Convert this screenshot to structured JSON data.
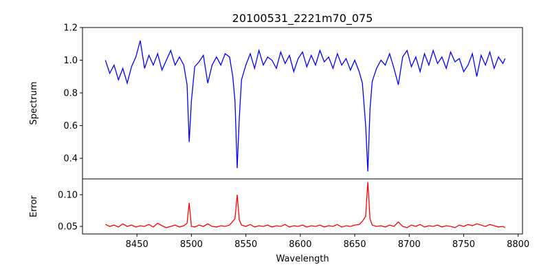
{
  "chart_data": {
    "type": "line",
    "title": "20100531_2221m70_075",
    "xlabel": "Wavelength",
    "xlim": [
      8400,
      8804
    ],
    "xticks": [
      8450,
      8500,
      8550,
      8600,
      8650,
      8700,
      8750,
      8800
    ],
    "x": [
      8421,
      8425,
      8429,
      8433,
      8437,
      8441,
      8445,
      8449,
      8453,
      8457,
      8461,
      8465,
      8469,
      8473,
      8477,
      8481,
      8485,
      8489,
      8493,
      8496,
      8498,
      8500,
      8503,
      8507,
      8511,
      8515,
      8519,
      8523,
      8527,
      8531,
      8535,
      8538,
      8540,
      8542,
      8544,
      8546,
      8550,
      8554,
      8558,
      8562,
      8566,
      8570,
      8574,
      8578,
      8582,
      8586,
      8590,
      8594,
      8598,
      8602,
      8606,
      8610,
      8614,
      8618,
      8622,
      8626,
      8630,
      8634,
      8638,
      8642,
      8646,
      8650,
      8654,
      8657,
      8660,
      8662,
      8664,
      8666,
      8670,
      8674,
      8678,
      8682,
      8686,
      8690,
      8694,
      8698,
      8702,
      8706,
      8710,
      8714,
      8718,
      8722,
      8726,
      8730,
      8734,
      8738,
      8742,
      8746,
      8750,
      8754,
      8758,
      8762,
      8766,
      8770,
      8774,
      8778,
      8782,
      8786,
      8788
    ],
    "panels": [
      {
        "name": "Spectrum",
        "ylabel": "Spectrum",
        "ylim": [
          0.274,
          1.2
        ],
        "yticks": [
          "0.4",
          "0.6",
          "0.8",
          "1.0",
          "1.2"
        ],
        "color": "#0000ff",
        "values": [
          1.0,
          0.92,
          0.97,
          0.88,
          0.95,
          0.86,
          0.96,
          1.02,
          1.12,
          0.95,
          1.03,
          0.97,
          1.04,
          0.94,
          1.0,
          1.06,
          0.97,
          1.02,
          0.97,
          0.85,
          0.5,
          0.75,
          0.96,
          0.99,
          1.03,
          0.86,
          0.97,
          1.02,
          0.97,
          1.04,
          1.02,
          0.9,
          0.75,
          0.34,
          0.65,
          0.88,
          0.97,
          1.04,
          0.95,
          1.06,
          0.97,
          1.02,
          1.0,
          0.95,
          1.05,
          0.98,
          1.03,
          0.93,
          1.01,
          1.05,
          0.96,
          1.03,
          0.97,
          1.06,
          0.99,
          1.02,
          0.95,
          1.04,
          0.97,
          1.01,
          0.94,
          1.0,
          0.93,
          0.86,
          0.6,
          0.32,
          0.7,
          0.87,
          0.95,
          1.0,
          0.97,
          1.04,
          0.95,
          0.85,
          1.02,
          1.06,
          0.96,
          1.02,
          0.93,
          1.04,
          0.97,
          1.06,
          0.98,
          1.02,
          0.95,
          1.05,
          0.99,
          1.01,
          0.93,
          0.97,
          1.04,
          0.9,
          1.03,
          0.97,
          1.05,
          0.95,
          1.02,
          0.98,
          1.01
        ]
      },
      {
        "name": "Error",
        "ylabel": "Error",
        "ylim": [
          0.038,
          0.125
        ],
        "yticks": [
          "0.05",
          "0.10"
        ],
        "color": "#ff0000",
        "values": [
          0.053,
          0.05,
          0.052,
          0.049,
          0.054,
          0.05,
          0.052,
          0.049,
          0.051,
          0.05,
          0.053,
          0.049,
          0.055,
          0.051,
          0.048,
          0.05,
          0.052,
          0.049,
          0.051,
          0.055,
          0.087,
          0.05,
          0.049,
          0.052,
          0.05,
          0.054,
          0.05,
          0.049,
          0.051,
          0.05,
          0.052,
          0.058,
          0.062,
          0.1,
          0.06,
          0.052,
          0.05,
          0.053,
          0.049,
          0.051,
          0.05,
          0.052,
          0.049,
          0.051,
          0.05,
          0.053,
          0.049,
          0.051,
          0.05,
          0.052,
          0.049,
          0.051,
          0.05,
          0.052,
          0.049,
          0.051,
          0.05,
          0.053,
          0.049,
          0.051,
          0.05,
          0.052,
          0.053,
          0.058,
          0.066,
          0.12,
          0.062,
          0.052,
          0.05,
          0.051,
          0.049,
          0.052,
          0.05,
          0.057,
          0.05,
          0.048,
          0.052,
          0.05,
          0.053,
          0.049,
          0.051,
          0.05,
          0.052,
          0.049,
          0.051,
          0.05,
          0.048,
          0.052,
          0.05,
          0.053,
          0.051,
          0.054,
          0.052,
          0.05,
          0.053,
          0.051,
          0.049,
          0.05,
          0.048
        ]
      }
    ]
  }
}
